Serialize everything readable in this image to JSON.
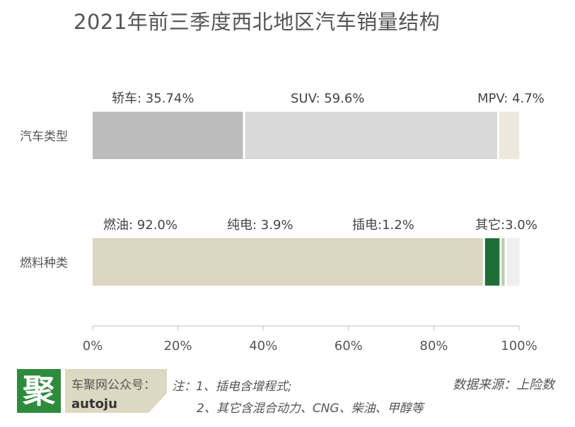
{
  "title": "2021年前三季度西北地区汽车销量结构",
  "chart_data": {
    "type": "bar",
    "stacked": true,
    "orientation": "horizontal",
    "xlim": [
      0,
      100
    ],
    "x_ticks": [
      "0%",
      "20%",
      "40%",
      "60%",
      "80%",
      "100%"
    ],
    "rows": [
      {
        "category": "汽车类型",
        "segments": [
          {
            "name": "轿车",
            "value": 35.74,
            "label": "轿车: 35.74%",
            "color": "#bcbcbc"
          },
          {
            "name": "SUV",
            "value": 59.6,
            "label": "SUV: 59.6%",
            "color": "#d9d9d9"
          },
          {
            "name": "MPV",
            "value": 4.7,
            "label": "MPV: 4.7%",
            "color": "#ece9dc"
          }
        ]
      },
      {
        "category": "燃料种类",
        "segments": [
          {
            "name": "燃油",
            "value": 92.0,
            "label": "燃油: 92.0%",
            "color": "#dbd7c0"
          },
          {
            "name": "纯电",
            "value": 3.9,
            "label": "纯电: 3.9%",
            "color": "#1e6e37"
          },
          {
            "name": "插电",
            "value": 1.2,
            "label": "插电:1.2%",
            "color": "#b5cfa3"
          },
          {
            "name": "其它",
            "value": 3.0,
            "label": "其它:3.0%",
            "color": "#efefef"
          }
        ]
      }
    ]
  },
  "footer": {
    "logo_char": "聚",
    "account_label": "车聚网公众号：",
    "account_handle": "autoju",
    "note_line1": "注：1、插电含增程式;",
    "note_line2": "2、其它含混合动力、CNG、柴油、甲醇等",
    "source": "数据来源：上险数"
  }
}
